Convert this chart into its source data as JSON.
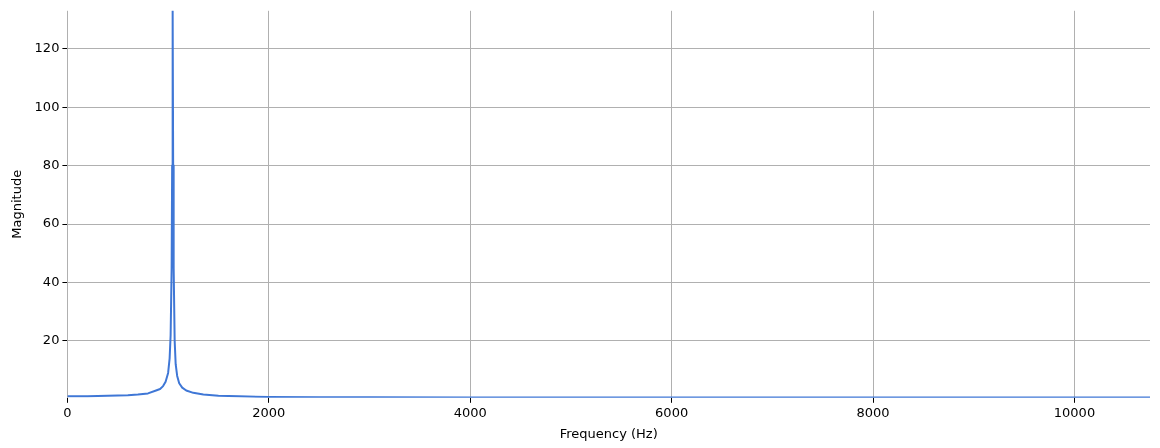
{
  "chart_data": {
    "type": "line",
    "xlabel": "Frequency (Hz)",
    "ylabel": "Magnitude",
    "xlim": [
      0,
      10750
    ],
    "ylim": [
      0.5,
      133
    ],
    "xticks": [
      0,
      2000,
      4000,
      6000,
      8000,
      10000
    ],
    "yticks": [
      20,
      40,
      60,
      80,
      100,
      120
    ],
    "grid": true,
    "legend": false,
    "marker": "none",
    "line_style": "solid",
    "series": [
      {
        "color": "#3f77d6",
        "x": [
          0,
          200,
          400,
          600,
          700,
          800,
          880,
          920,
          950,
          975,
          1000,
          1015,
          1025,
          1035,
          1040,
          1045,
          1050,
          1055,
          1065,
          1075,
          1090,
          1110,
          1140,
          1180,
          1250,
          1350,
          1500,
          1700,
          2000,
          2500,
          3000,
          4000,
          5000,
          6000,
          8000,
          10000,
          10750
        ],
        "values": [
          1.0,
          1.0,
          1.2,
          1.4,
          1.6,
          2,
          3,
          3.5,
          4.5,
          6,
          9,
          14,
          22,
          45,
          80,
          133,
          80,
          45,
          20,
          12,
          8,
          5.5,
          4,
          3,
          2.2,
          1.6,
          1.2,
          1,
          0.8,
          0.7,
          0.7,
          0.6,
          0.6,
          0.6,
          0.6,
          0.6,
          0.6
        ]
      }
    ]
  }
}
